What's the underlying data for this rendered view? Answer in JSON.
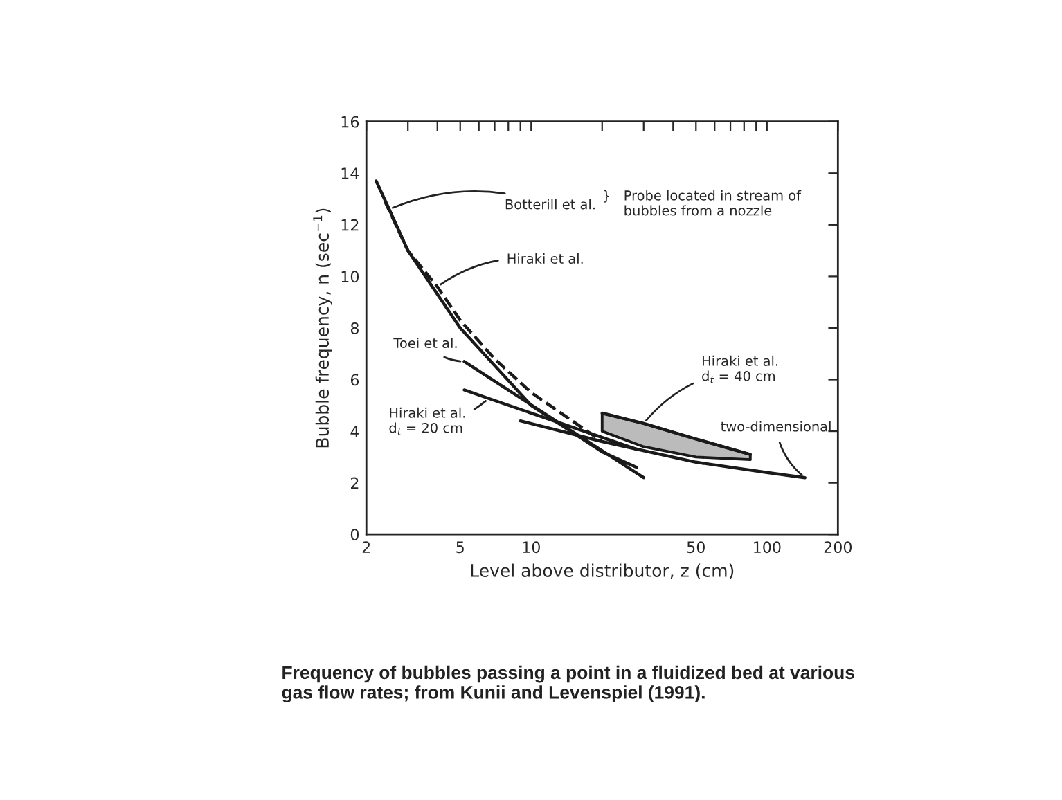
{
  "chart_data": {
    "type": "line",
    "xlabel": "Level above distributor, z (cm)",
    "ylabel": "Bubble frequency, n (sec$^{−1}$)",
    "log": "x",
    "grid": false,
    "legend": false,
    "xlim": [
      2,
      200
    ],
    "ylim": [
      0,
      16
    ],
    "xticks": [
      2,
      {
        "value": 3,
        "label": null
      },
      {
        "value": 4,
        "label": null
      },
      5,
      {
        "value": 6,
        "label": null
      },
      {
        "value": 7,
        "label": null
      },
      {
        "value": 8,
        "label": null
      },
      {
        "value": 9,
        "label": null
      },
      10,
      {
        "value": 20,
        "label": null
      },
      {
        "value": 30,
        "label": null
      },
      {
        "value": 40,
        "label": null
      },
      50,
      {
        "value": 60,
        "label": null
      },
      {
        "value": 70,
        "label": null
      },
      {
        "value": 80,
        "label": null
      },
      {
        "value": 90,
        "label": null
      },
      100,
      200
    ],
    "yticks": [
      0,
      2,
      4,
      6,
      8,
      10,
      12,
      14,
      16
    ],
    "series": [
      {
        "color": "#1a1a1a",
        "line_style": "solid",
        "x": [
          2.2,
          2.5,
          3,
          5,
          10,
          20,
          28
        ],
        "values": [
          13.7,
          12.6,
          11.0,
          8.0,
          5.0,
          3.2,
          2.6
        ]
      },
      {
        "color": "#1a1a1a",
        "line_style": "dashed",
        "x": [
          2.4,
          3,
          4,
          5,
          7,
          10,
          20
        ],
        "values": [
          12.9,
          11.0,
          9.6,
          8.3,
          6.8,
          5.5,
          3.6
        ]
      },
      {
        "color": "#1a1a1a",
        "line_style": "solid",
        "x": [
          5.2,
          30
        ],
        "values": [
          6.7,
          2.2
        ]
      },
      {
        "color": "#1a1a1a",
        "line_style": "solid",
        "x": [
          5.2,
          6.6,
          28
        ],
        "values": [
          5.6,
          5.27,
          3.3
        ]
      },
      {
        "color": "#1a1a1a",
        "line_style": "solid",
        "x": [
          20,
          30,
          50,
          85
        ],
        "values": [
          4.7,
          4.3,
          3.7,
          3.1
        ],
        "upper": [
          4.7,
          4.3,
          3.7,
          3.1
        ],
        "lower": [
          4.0,
          3.4,
          3.0,
          2.9
        ]
      },
      {
        "color": "#1a1a1a",
        "line_style": "solid",
        "x": [
          9,
          20,
          50,
          100,
          145
        ],
        "values": [
          4.4,
          3.6,
          2.8,
          2.4,
          2.2
        ]
      }
    ],
    "annotations": [
      {
        "text": "Botterill et al.",
        "x": 2.5,
        "y": 12.6
      },
      {
        "text": "Hiraki et al.",
        "x": 4,
        "y": 9.6
      },
      {
        "text": "Toei et al.",
        "x": 5.2,
        "y": 6.7
      },
      {
        "text": "Hiraki et al.\nd$_{t}$ = 20 cm",
        "x": 6.6,
        "y": 5.27
      },
      {
        "text": "Hiraki et al.\nd$_{t}$ = 40 cm",
        "x": 30,
        "y": 4.3
      },
      {
        "text": "two-dimensional",
        "x": 145,
        "y": 2.2
      },
      "}   Probe located in stream of\n     bubbles from a nozzle",
      "Frequency of bubbles passing a point in a fluidized bed at various\ngas flow rates; from Kunii and Levenspiel (1991)."
    ]
  }
}
